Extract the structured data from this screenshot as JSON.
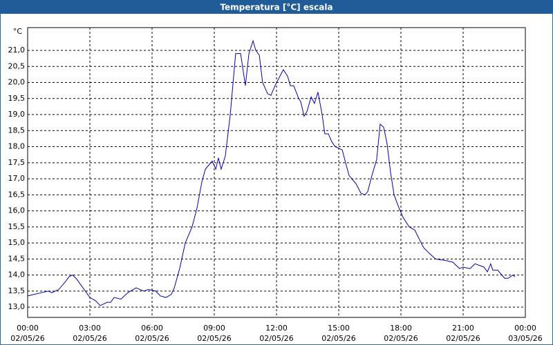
{
  "chart_data": {
    "type": "line",
    "title": "Temperatura [°C] escala",
    "ylabel": "°C",
    "x": [
      0,
      0.33,
      0.67,
      1,
      1.17,
      1.5,
      1.83,
      2,
      2.17,
      2.33,
      2.67,
      3,
      3.27,
      3.5,
      3.83,
      4,
      4.17,
      4.5,
      4.83,
      5.23,
      5.6,
      5.83,
      6.17,
      6.4,
      6.67,
      6.93,
      7.07,
      7.33,
      7.6,
      7.93,
      8.17,
      8.4,
      8.57,
      8.9,
      9.07,
      9.2,
      9.33,
      9.53,
      9.77,
      10.03,
      10.27,
      10.5,
      10.67,
      10.87,
      11,
      11.17,
      11.33,
      11.57,
      11.73,
      11.93,
      12.33,
      12.53,
      12.67,
      12.83,
      13.07,
      13.17,
      13.33,
      13.47,
      13.67,
      13.83,
      14,
      14.2,
      14.33,
      14.5,
      14.67,
      14.83,
      15.17,
      15.33,
      15.5,
      15.83,
      16.07,
      16.27,
      16.4,
      16.6,
      16.83,
      17,
      17.17,
      17.33,
      17.5,
      17.67,
      17.9,
      18.1,
      18.4,
      18.67,
      18.9,
      19.1,
      19.33,
      19.67,
      20.17,
      20.5,
      20.83,
      21,
      21.33,
      21.57,
      22,
      22.17,
      22.33,
      22.43,
      22.67,
      23,
      23.17,
      23.4,
      23.5
    ],
    "values": [
      13.35,
      13.4,
      13.45,
      13.5,
      13.45,
      13.55,
      13.8,
      13.95,
      14.0,
      13.9,
      13.6,
      13.3,
      13.2,
      13.05,
      13.15,
      13.15,
      13.3,
      13.25,
      13.45,
      13.6,
      13.5,
      13.55,
      13.5,
      13.35,
      13.3,
      13.4,
      13.6,
      14.2,
      15.0,
      15.5,
      16.1,
      16.9,
      17.3,
      17.55,
      17.3,
      17.65,
      17.3,
      17.7,
      19.0,
      20.9,
      20.9,
      19.9,
      20.9,
      21.3,
      21.0,
      20.85,
      20.0,
      19.65,
      19.6,
      19.9,
      20.4,
      20.2,
      19.9,
      19.9,
      19.5,
      19.4,
      18.95,
      19.1,
      19.55,
      19.35,
      19.7,
      19.0,
      18.4,
      18.4,
      18.15,
      18.0,
      17.9,
      17.5,
      17.1,
      16.85,
      16.55,
      16.5,
      16.6,
      17.1,
      17.6,
      18.7,
      18.6,
      18.1,
      17.2,
      16.5,
      16.1,
      15.8,
      15.5,
      15.4,
      15.1,
      14.85,
      14.7,
      14.5,
      14.45,
      14.4,
      14.2,
      14.25,
      14.2,
      14.35,
      14.25,
      14.1,
      14.35,
      14.15,
      14.15,
      13.9,
      13.9,
      14.0,
      13.95
    ],
    "color": "#0000b0",
    "grid": true,
    "xlim": [
      0,
      24
    ],
    "xticks": [
      {
        "value": 0,
        "label": [
          "00:00",
          "02/05/26"
        ]
      },
      {
        "value": 3,
        "label": [
          "03:00",
          "02/05/26"
        ]
      },
      {
        "value": 6,
        "label": [
          "06:00",
          "02/05/26"
        ]
      },
      {
        "value": 9,
        "label": [
          "09:00",
          "02/05/26"
        ]
      },
      {
        "value": 12,
        "label": [
          "12:00",
          "02/05/26"
        ]
      },
      {
        "value": 15,
        "label": [
          "15:00",
          "02/05/26"
        ]
      },
      {
        "value": 18,
        "label": [
          "18:00",
          "02/05/26"
        ]
      },
      {
        "value": 21,
        "label": [
          "21:00",
          "02/05/26"
        ]
      },
      {
        "value": 24,
        "label": [
          "00:00",
          "03/05/26"
        ]
      }
    ],
    "ylim": [
      12.68,
      21.71
    ],
    "yticks": [
      {
        "value": 13,
        "label": "13,0"
      },
      {
        "value": 13.5,
        "label": "13,5"
      },
      {
        "value": 14,
        "label": "14,0"
      },
      {
        "value": 14.5,
        "label": "14,5"
      },
      {
        "value": 15,
        "label": "15,0"
      },
      {
        "value": 15.5,
        "label": "15,5"
      },
      {
        "value": 16,
        "label": "16,0"
      },
      {
        "value": 16.5,
        "label": "16,5"
      },
      {
        "value": 17,
        "label": "17,0"
      },
      {
        "value": 17.5,
        "label": "17,5"
      },
      {
        "value": 18,
        "label": "18,0"
      },
      {
        "value": 18.5,
        "label": "18,5"
      },
      {
        "value": 19,
        "label": "19,0"
      },
      {
        "value": 19.5,
        "label": "19,5"
      },
      {
        "value": 20,
        "label": "20,0"
      },
      {
        "value": 20.5,
        "label": "20,5"
      },
      {
        "value": 21,
        "label": "21,0"
      }
    ]
  }
}
